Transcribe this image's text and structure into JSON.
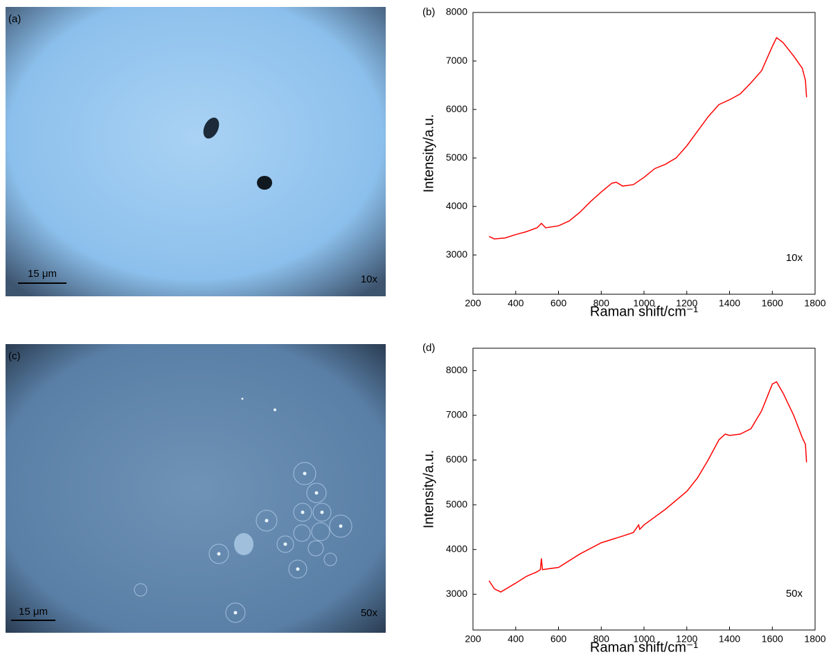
{
  "panels": [
    {
      "label": "(a)",
      "scale_bar": "15 μm",
      "magnification": "10x"
    },
    {
      "label": "(c)",
      "scale_bar": "15 μm",
      "magnification": "50x"
    }
  ],
  "chart_data": [
    {
      "type": "line",
      "panel_label": "(b)",
      "annotation": "10x",
      "x_label": "Raman shift/cm⁻¹",
      "y_label": "Intensity/a.u.",
      "x": [
        275,
        300,
        350,
        400,
        450,
        500,
        520,
        540,
        600,
        650,
        700,
        750,
        800,
        850,
        870,
        900,
        950,
        1000,
        1050,
        1100,
        1150,
        1200,
        1250,
        1300,
        1350,
        1400,
        1450,
        1500,
        1550,
        1600,
        1620,
        1650,
        1700,
        1740,
        1755,
        1760
      ],
      "series": [
        {
          "color": "#ff0000",
          "values": [
            3380,
            3330,
            3350,
            3420,
            3480,
            3560,
            3650,
            3560,
            3600,
            3700,
            3880,
            4100,
            4300,
            4480,
            4500,
            4420,
            4450,
            4600,
            4780,
            4870,
            5000,
            5250,
            5550,
            5850,
            6100,
            6200,
            6320,
            6550,
            6800,
            7300,
            7480,
            7380,
            7100,
            6850,
            6600,
            6250
          ]
        }
      ],
      "xlim": [
        200,
        1800
      ],
      "ylim": [
        2190,
        8000
      ],
      "xticks": [
        200,
        400,
        600,
        800,
        1000,
        1200,
        1400,
        1600,
        1800
      ],
      "yticks": [
        3000,
        4000,
        5000,
        6000,
        7000,
        8000
      ]
    },
    {
      "type": "line",
      "panel_label": "(d)",
      "annotation": "50x",
      "x_label": "Raman shift/cm⁻¹",
      "y_label": "Intensity/a.u.",
      "x": [
        275,
        300,
        330,
        400,
        450,
        500,
        515,
        520,
        525,
        600,
        700,
        800,
        900,
        950,
        975,
        980,
        1000,
        1100,
        1200,
        1250,
        1300,
        1350,
        1380,
        1400,
        1450,
        1500,
        1550,
        1600,
        1620,
        1650,
        1700,
        1740,
        1755,
        1760
      ],
      "series": [
        {
          "color": "#ff0000",
          "values": [
            3300,
            3120,
            3050,
            3250,
            3400,
            3500,
            3550,
            3800,
            3550,
            3600,
            3900,
            4150,
            4300,
            4380,
            4550,
            4450,
            4550,
            4900,
            5300,
            5600,
            6000,
            6450,
            6580,
            6550,
            6580,
            6700,
            7100,
            7700,
            7750,
            7500,
            7000,
            6500,
            6350,
            5950
          ]
        }
      ],
      "xlim": [
        200,
        1800
      ],
      "ylim": [
        2200,
        8500
      ],
      "xticks": [
        200,
        400,
        600,
        800,
        1000,
        1200,
        1400,
        1600,
        1800
      ],
      "yticks": [
        3000,
        4000,
        5000,
        6000,
        7000,
        8000
      ]
    }
  ]
}
